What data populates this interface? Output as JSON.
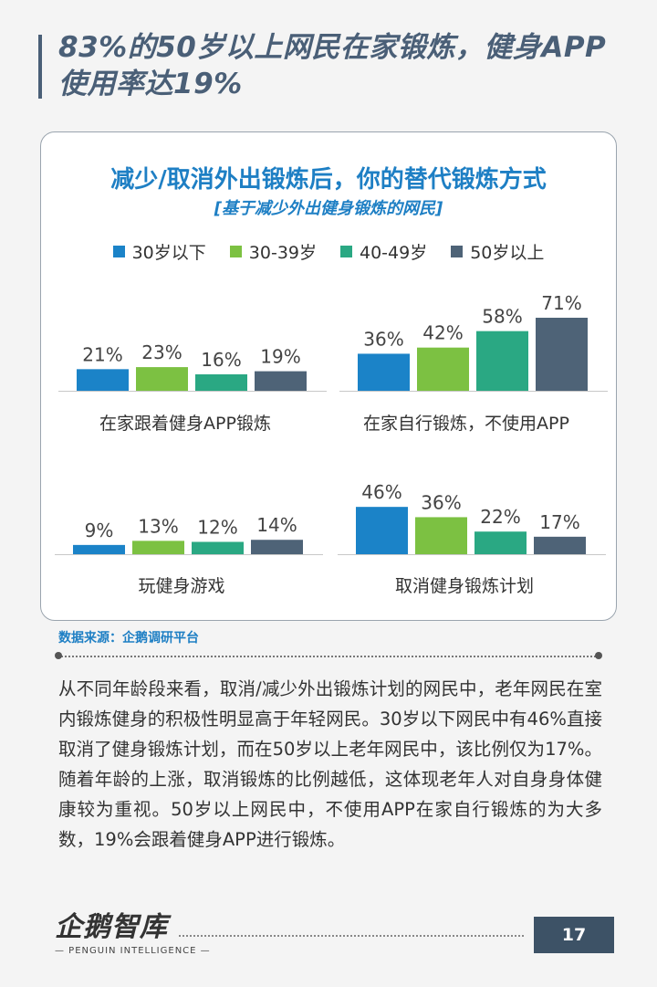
{
  "page": {
    "title": "83%的50岁以上网民在家锻炼，健身APP使用率达19%",
    "source": "数据来源：企鹅调研平台",
    "body": "从不同年龄段来看，取消/减少外出锻炼计划的网民中，老年网民在室内锻炼健身的积极性明显高于年轻网民。30岁以下网民中有46%直接取消了健身锻炼计划，而在50岁以上老年网民中，该比例仅为17%。随着年龄的上涨，取消锻炼的比例越低，这体现老年人对自身身体健康较为重视。50岁以上网民中，不使用APP在家自行锻炼的为大多数，19%会跟着健身APP进行锻炼。",
    "logo": "企鹅智库",
    "logo_sub": "— PENGUIN  INTELLIGENCE —",
    "page_number": "17"
  },
  "chart_data": {
    "type": "bar",
    "title": "减少/取消外出锻炼后，你的替代锻炼方式",
    "subtitle": "[基于减少外出健身锻炼的网民]",
    "series_names": [
      "30岁以下",
      "30-39岁",
      "40-49岁",
      "50岁以上"
    ],
    "colors": [
      "#1b83c8",
      "#7cc142",
      "#2aa883",
      "#4e6377"
    ],
    "unit": "%",
    "ylim": [
      0,
      80
    ],
    "groups": [
      {
        "label": "在家跟着健身APP锻炼",
        "values": [
          21,
          23,
          16,
          19
        ]
      },
      {
        "label": "在家自行锻炼，不使用APP",
        "values": [
          36,
          42,
          58,
          71
        ]
      },
      {
        "label": "玩健身游戏",
        "values": [
          9,
          13,
          12,
          14
        ]
      },
      {
        "label": "取消健身锻炼计划",
        "values": [
          46,
          36,
          22,
          17
        ]
      }
    ]
  }
}
